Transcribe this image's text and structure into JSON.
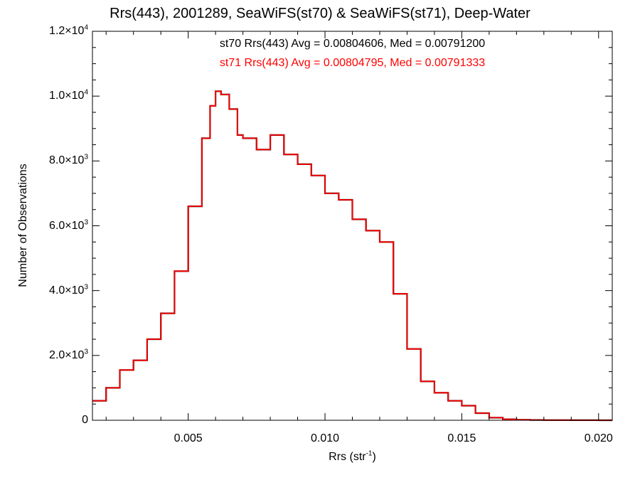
{
  "chart_data": {
    "type": "line",
    "step": true,
    "title": "Rrs(443), 2001289, SeaWiFS(st70) & SeaWiFS(st71), Deep-Water",
    "xlabel": "Rrs (str",
    "xlabel_sup": "-1",
    "xlabel_end": ")",
    "ylabel": "Number of Observations",
    "xlim": [
      0.0015,
      0.0205
    ],
    "ylim": [
      0,
      12000
    ],
    "grid": false,
    "x_ticks": [
      {
        "value": 0.005,
        "label": "0.005"
      },
      {
        "value": 0.01,
        "label": "0.010"
      },
      {
        "value": 0.015,
        "label": "0.015"
      },
      {
        "value": 0.02,
        "label": "0.020"
      }
    ],
    "y_ticks": [
      {
        "value": 0,
        "mant": "0",
        "exp": ""
      },
      {
        "value": 2000,
        "mant": "2.0×10",
        "exp": "3"
      },
      {
        "value": 4000,
        "mant": "4.0×10",
        "exp": "3"
      },
      {
        "value": 6000,
        "mant": "6.0×10",
        "exp": "3"
      },
      {
        "value": 8000,
        "mant": "8.0×10",
        "exp": "3"
      },
      {
        "value": 10000,
        "mant": "1.0×10",
        "exp": "4"
      },
      {
        "value": 12000,
        "mant": "1.2×10",
        "exp": "4"
      }
    ],
    "annotations": [
      {
        "text": "st70 Rrs(443) Avg = 0.00804606, Med = 0.00791200",
        "color": "#000000"
      },
      {
        "text": "st71 Rrs(443) Avg = 0.00804795, Med = 0.00791333",
        "color": "#ff0000"
      }
    ],
    "x": [
      0.0015,
      0.002,
      0.0025,
      0.003,
      0.0035,
      0.004,
      0.0045,
      0.005,
      0.0055,
      0.0058,
      0.006,
      0.0062,
      0.0065,
      0.0068,
      0.007,
      0.0075,
      0.008,
      0.0085,
      0.009,
      0.0095,
      0.01,
      0.0105,
      0.011,
      0.0115,
      0.012,
      0.0125,
      0.013,
      0.0135,
      0.014,
      0.0145,
      0.015,
      0.0155,
      0.016,
      0.0165,
      0.017,
      0.0175,
      0.018,
      0.019,
      0.02,
      0.0205
    ],
    "series": [
      {
        "name": "st70",
        "color": "#000000",
        "values": [
          600,
          1000,
          1550,
          1850,
          2500,
          3300,
          4600,
          6600,
          8700,
          9700,
          10150,
          10050,
          9600,
          8800,
          8700,
          8350,
          8800,
          8200,
          7900,
          7550,
          7000,
          6800,
          6200,
          5850,
          5500,
          3900,
          2200,
          1200,
          850,
          600,
          450,
          220,
          80,
          30,
          15,
          8,
          4,
          2,
          1,
          0
        ]
      },
      {
        "name": "st71",
        "color": "#ff0000",
        "values": [
          600,
          1000,
          1550,
          1850,
          2500,
          3300,
          4600,
          6600,
          8700,
          9700,
          10150,
          10050,
          9600,
          8800,
          8700,
          8350,
          8800,
          8200,
          7900,
          7550,
          7000,
          6800,
          6200,
          5850,
          5500,
          3900,
          2200,
          1200,
          850,
          600,
          450,
          220,
          80,
          30,
          15,
          8,
          4,
          2,
          1,
          0
        ]
      }
    ]
  }
}
